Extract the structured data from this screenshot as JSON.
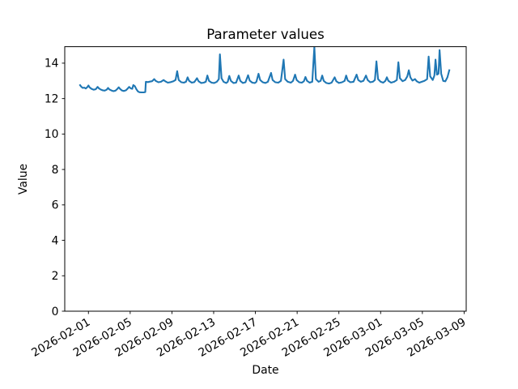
{
  "chart_data": {
    "type": "line",
    "title": "Parameter values",
    "xlabel": "Date",
    "ylabel": "Value",
    "grid": false,
    "legend": "none",
    "line_color": "#1f77b4",
    "background_color": "#ffffff",
    "y_ticks": [
      0,
      2,
      4,
      6,
      8,
      10,
      12,
      14
    ],
    "ylim": [
      0,
      14.93
    ],
    "x_tick_labels": [
      "2026-02-01",
      "2026-02-05",
      "2026-02-09",
      "2026-02-13",
      "2026-02-17",
      "2026-02-21",
      "2026-02-25",
      "2026-03-01",
      "2026-03-05",
      "2026-03-09"
    ],
    "x_tick_days": [
      0,
      4,
      8,
      12,
      16,
      20,
      24,
      28,
      32,
      36
    ],
    "xlim_days": [
      -2.27,
      36.2
    ],
    "series": [
      {
        "name": "Parameter values",
        "x_unit": "days since 2026-02-01",
        "points": [
          [
            -0.85,
            12.8
          ],
          [
            -0.7,
            12.68
          ],
          [
            -0.55,
            12.6
          ],
          [
            -0.4,
            12.62
          ],
          [
            -0.25,
            12.57
          ],
          [
            -0.1,
            12.65
          ],
          [
            0.0,
            12.74
          ],
          [
            0.12,
            12.63
          ],
          [
            0.3,
            12.55
          ],
          [
            0.5,
            12.5
          ],
          [
            0.7,
            12.53
          ],
          [
            0.88,
            12.66
          ],
          [
            1.0,
            12.58
          ],
          [
            1.15,
            12.52
          ],
          [
            1.35,
            12.47
          ],
          [
            1.55,
            12.45
          ],
          [
            1.75,
            12.5
          ],
          [
            1.88,
            12.6
          ],
          [
            2.0,
            12.52
          ],
          [
            2.2,
            12.46
          ],
          [
            2.4,
            12.42
          ],
          [
            2.6,
            12.45
          ],
          [
            2.78,
            12.55
          ],
          [
            2.9,
            12.64
          ],
          [
            3.02,
            12.55
          ],
          [
            3.2,
            12.46
          ],
          [
            3.4,
            12.43
          ],
          [
            3.6,
            12.47
          ],
          [
            3.78,
            12.58
          ],
          [
            3.9,
            12.66
          ],
          [
            4.05,
            12.58
          ],
          [
            4.2,
            12.55
          ],
          [
            4.3,
            12.76
          ],
          [
            4.45,
            12.7
          ],
          [
            4.6,
            12.52
          ],
          [
            4.75,
            12.4
          ],
          [
            4.9,
            12.36
          ],
          [
            5.1,
            12.35
          ],
          [
            5.3,
            12.35
          ],
          [
            5.45,
            12.37
          ],
          [
            5.5,
            12.95
          ],
          [
            5.7,
            12.93
          ],
          [
            5.9,
            12.96
          ],
          [
            6.1,
            12.98
          ],
          [
            6.3,
            13.1
          ],
          [
            6.45,
            13.0
          ],
          [
            6.7,
            12.92
          ],
          [
            6.95,
            12.95
          ],
          [
            7.2,
            13.05
          ],
          [
            7.35,
            12.98
          ],
          [
            7.6,
            12.9
          ],
          [
            7.9,
            12.93
          ],
          [
            8.15,
            12.98
          ],
          [
            8.35,
            13.05
          ],
          [
            8.5,
            13.55
          ],
          [
            8.65,
            13.05
          ],
          [
            8.9,
            12.92
          ],
          [
            9.15,
            12.9
          ],
          [
            9.35,
            12.95
          ],
          [
            9.5,
            13.2
          ],
          [
            9.65,
            13.0
          ],
          [
            9.9,
            12.9
          ],
          [
            10.15,
            12.93
          ],
          [
            10.4,
            13.15
          ],
          [
            10.55,
            12.98
          ],
          [
            10.8,
            12.88
          ],
          [
            11.05,
            12.9
          ],
          [
            11.25,
            12.95
          ],
          [
            11.4,
            13.3
          ],
          [
            11.55,
            13.0
          ],
          [
            11.8,
            12.9
          ],
          [
            12.05,
            12.88
          ],
          [
            12.3,
            12.95
          ],
          [
            12.5,
            13.1
          ],
          [
            12.6,
            14.5
          ],
          [
            12.75,
            13.15
          ],
          [
            12.95,
            12.95
          ],
          [
            13.2,
            12.88
          ],
          [
            13.35,
            12.95
          ],
          [
            13.5,
            13.28
          ],
          [
            13.65,
            13.0
          ],
          [
            13.9,
            12.88
          ],
          [
            14.15,
            12.9
          ],
          [
            14.4,
            13.3
          ],
          [
            14.55,
            13.0
          ],
          [
            14.8,
            12.88
          ],
          [
            15.05,
            12.92
          ],
          [
            15.3,
            13.32
          ],
          [
            15.45,
            13.02
          ],
          [
            15.7,
            12.9
          ],
          [
            15.95,
            12.88
          ],
          [
            16.1,
            12.95
          ],
          [
            16.3,
            13.4
          ],
          [
            16.45,
            13.05
          ],
          [
            16.7,
            12.92
          ],
          [
            16.95,
            12.88
          ],
          [
            17.2,
            12.95
          ],
          [
            17.5,
            13.45
          ],
          [
            17.65,
            13.05
          ],
          [
            17.9,
            12.92
          ],
          [
            18.2,
            12.9
          ],
          [
            18.45,
            13.0
          ],
          [
            18.7,
            14.2
          ],
          [
            18.85,
            13.1
          ],
          [
            19.1,
            12.95
          ],
          [
            19.4,
            12.9
          ],
          [
            19.6,
            13.0
          ],
          [
            19.8,
            13.35
          ],
          [
            19.95,
            13.05
          ],
          [
            20.2,
            12.92
          ],
          [
            20.45,
            12.9
          ],
          [
            20.65,
            12.98
          ],
          [
            20.8,
            13.22
          ],
          [
            20.95,
            13.0
          ],
          [
            21.2,
            12.9
          ],
          [
            21.45,
            12.95
          ],
          [
            21.65,
            14.92
          ],
          [
            21.8,
            13.1
          ],
          [
            22.05,
            12.95
          ],
          [
            22.25,
            13.0
          ],
          [
            22.4,
            13.3
          ],
          [
            22.55,
            13.0
          ],
          [
            22.8,
            12.88
          ],
          [
            23.05,
            12.85
          ],
          [
            23.3,
            12.9
          ],
          [
            23.6,
            13.2
          ],
          [
            23.75,
            12.98
          ],
          [
            24.0,
            12.88
          ],
          [
            24.3,
            12.92
          ],
          [
            24.55,
            13.0
          ],
          [
            24.7,
            13.3
          ],
          [
            24.85,
            13.02
          ],
          [
            25.1,
            12.92
          ],
          [
            25.4,
            12.95
          ],
          [
            25.7,
            13.35
          ],
          [
            25.85,
            13.05
          ],
          [
            26.1,
            12.95
          ],
          [
            26.35,
            13.0
          ],
          [
            26.6,
            13.3
          ],
          [
            26.75,
            13.05
          ],
          [
            27.0,
            12.92
          ],
          [
            27.25,
            12.95
          ],
          [
            27.45,
            13.05
          ],
          [
            27.6,
            14.1
          ],
          [
            27.75,
            13.1
          ],
          [
            28.0,
            12.95
          ],
          [
            28.25,
            12.9
          ],
          [
            28.45,
            13.0
          ],
          [
            28.6,
            13.2
          ],
          [
            28.75,
            13.0
          ],
          [
            29.0,
            12.9
          ],
          [
            29.3,
            12.95
          ],
          [
            29.55,
            13.05
          ],
          [
            29.7,
            14.05
          ],
          [
            29.85,
            13.15
          ],
          [
            30.1,
            12.98
          ],
          [
            30.35,
            13.05
          ],
          [
            30.55,
            13.25
          ],
          [
            30.7,
            13.6
          ],
          [
            30.85,
            13.2
          ],
          [
            31.05,
            13.02
          ],
          [
            31.3,
            13.1
          ],
          [
            31.45,
            12.98
          ],
          [
            31.7,
            12.9
          ],
          [
            31.95,
            12.95
          ],
          [
            32.2,
            13.0
          ],
          [
            32.45,
            13.1
          ],
          [
            32.6,
            14.37
          ],
          [
            32.75,
            13.25
          ],
          [
            33.0,
            13.05
          ],
          [
            33.15,
            13.3
          ],
          [
            33.26,
            14.2
          ],
          [
            33.4,
            13.35
          ],
          [
            33.55,
            13.4
          ],
          [
            33.65,
            14.74
          ],
          [
            33.8,
            13.4
          ],
          [
            34.0,
            13.0
          ],
          [
            34.2,
            12.97
          ],
          [
            34.4,
            13.2
          ],
          [
            34.6,
            13.65
          ]
        ]
      }
    ]
  }
}
